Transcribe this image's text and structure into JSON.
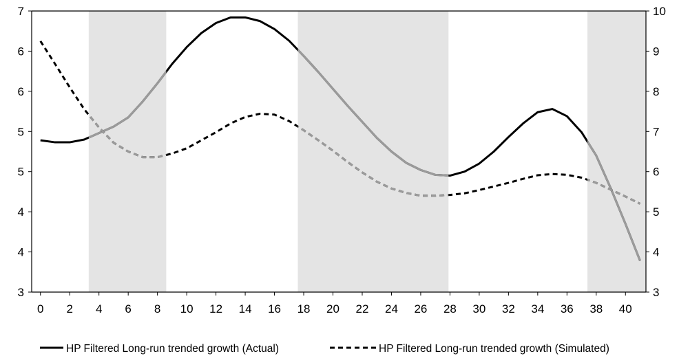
{
  "chart_data": {
    "type": "line",
    "title": "",
    "xlabel": "",
    "ylabel_left": "",
    "ylabel_right": "",
    "x": [
      0,
      1,
      2,
      3,
      4,
      5,
      6,
      7,
      8,
      9,
      10,
      11,
      12,
      13,
      14,
      15,
      16,
      17,
      18,
      19,
      20,
      21,
      22,
      23,
      24,
      25,
      26,
      27,
      28,
      29,
      30,
      31,
      32,
      33,
      34,
      35,
      36,
      37,
      38,
      39,
      40,
      41
    ],
    "x_ticks": [
      0,
      2,
      4,
      6,
      8,
      10,
      12,
      14,
      16,
      18,
      20,
      22,
      24,
      26,
      28,
      30,
      32,
      34,
      36,
      38,
      40
    ],
    "x_range": [
      -0.6,
      41.4
    ],
    "y_left_ticks": [
      "3",
      "4",
      "4",
      "5",
      "5",
      "6",
      "6",
      "7"
    ],
    "y_left_range": [
      3,
      7
    ],
    "y_right_ticks": [
      3,
      4,
      5,
      6,
      7,
      8,
      9,
      10
    ],
    "y_right_range": [
      3,
      10
    ],
    "shaded_regions": [
      [
        3.3,
        8.6
      ],
      [
        17.6,
        27.9
      ],
      [
        37.4,
        41.4
      ]
    ],
    "shade_color": "#e4e4e4",
    "series": [
      {
        "name": "HP Filtered Long-run trended growth (Actual)",
        "axis": "right",
        "style": "solid",
        "values": [
          6.78,
          6.73,
          6.73,
          6.8,
          6.96,
          7.12,
          7.35,
          7.75,
          8.2,
          8.68,
          9.1,
          9.45,
          9.7,
          9.84,
          9.84,
          9.75,
          9.55,
          9.26,
          8.88,
          8.48,
          8.06,
          7.64,
          7.24,
          6.84,
          6.5,
          6.22,
          6.04,
          5.92,
          5.9,
          6.0,
          6.2,
          6.5,
          6.86,
          7.2,
          7.48,
          7.56,
          7.38,
          6.98,
          6.4,
          5.58,
          4.7,
          3.78
        ]
      },
      {
        "name": "HP Filtered Long-run trended growth (Simulated)",
        "axis": "right",
        "style": "dashed",
        "values": [
          9.25,
          8.68,
          8.1,
          7.55,
          7.1,
          6.72,
          6.5,
          6.36,
          6.36,
          6.45,
          6.58,
          6.78,
          6.98,
          7.2,
          7.36,
          7.44,
          7.42,
          7.26,
          7.03,
          6.78,
          6.52,
          6.24,
          5.98,
          5.75,
          5.58,
          5.47,
          5.4,
          5.4,
          5.42,
          5.46,
          5.54,
          5.63,
          5.72,
          5.82,
          5.91,
          5.94,
          5.92,
          5.85,
          5.72,
          5.55,
          5.38,
          5.2
        ]
      }
    ],
    "colors": {
      "actual": "#000000",
      "simulated": "#000000",
      "outside_shade": "#9b9b9b",
      "axis": "#000000"
    },
    "legend_position": "bottom",
    "grid": false
  }
}
